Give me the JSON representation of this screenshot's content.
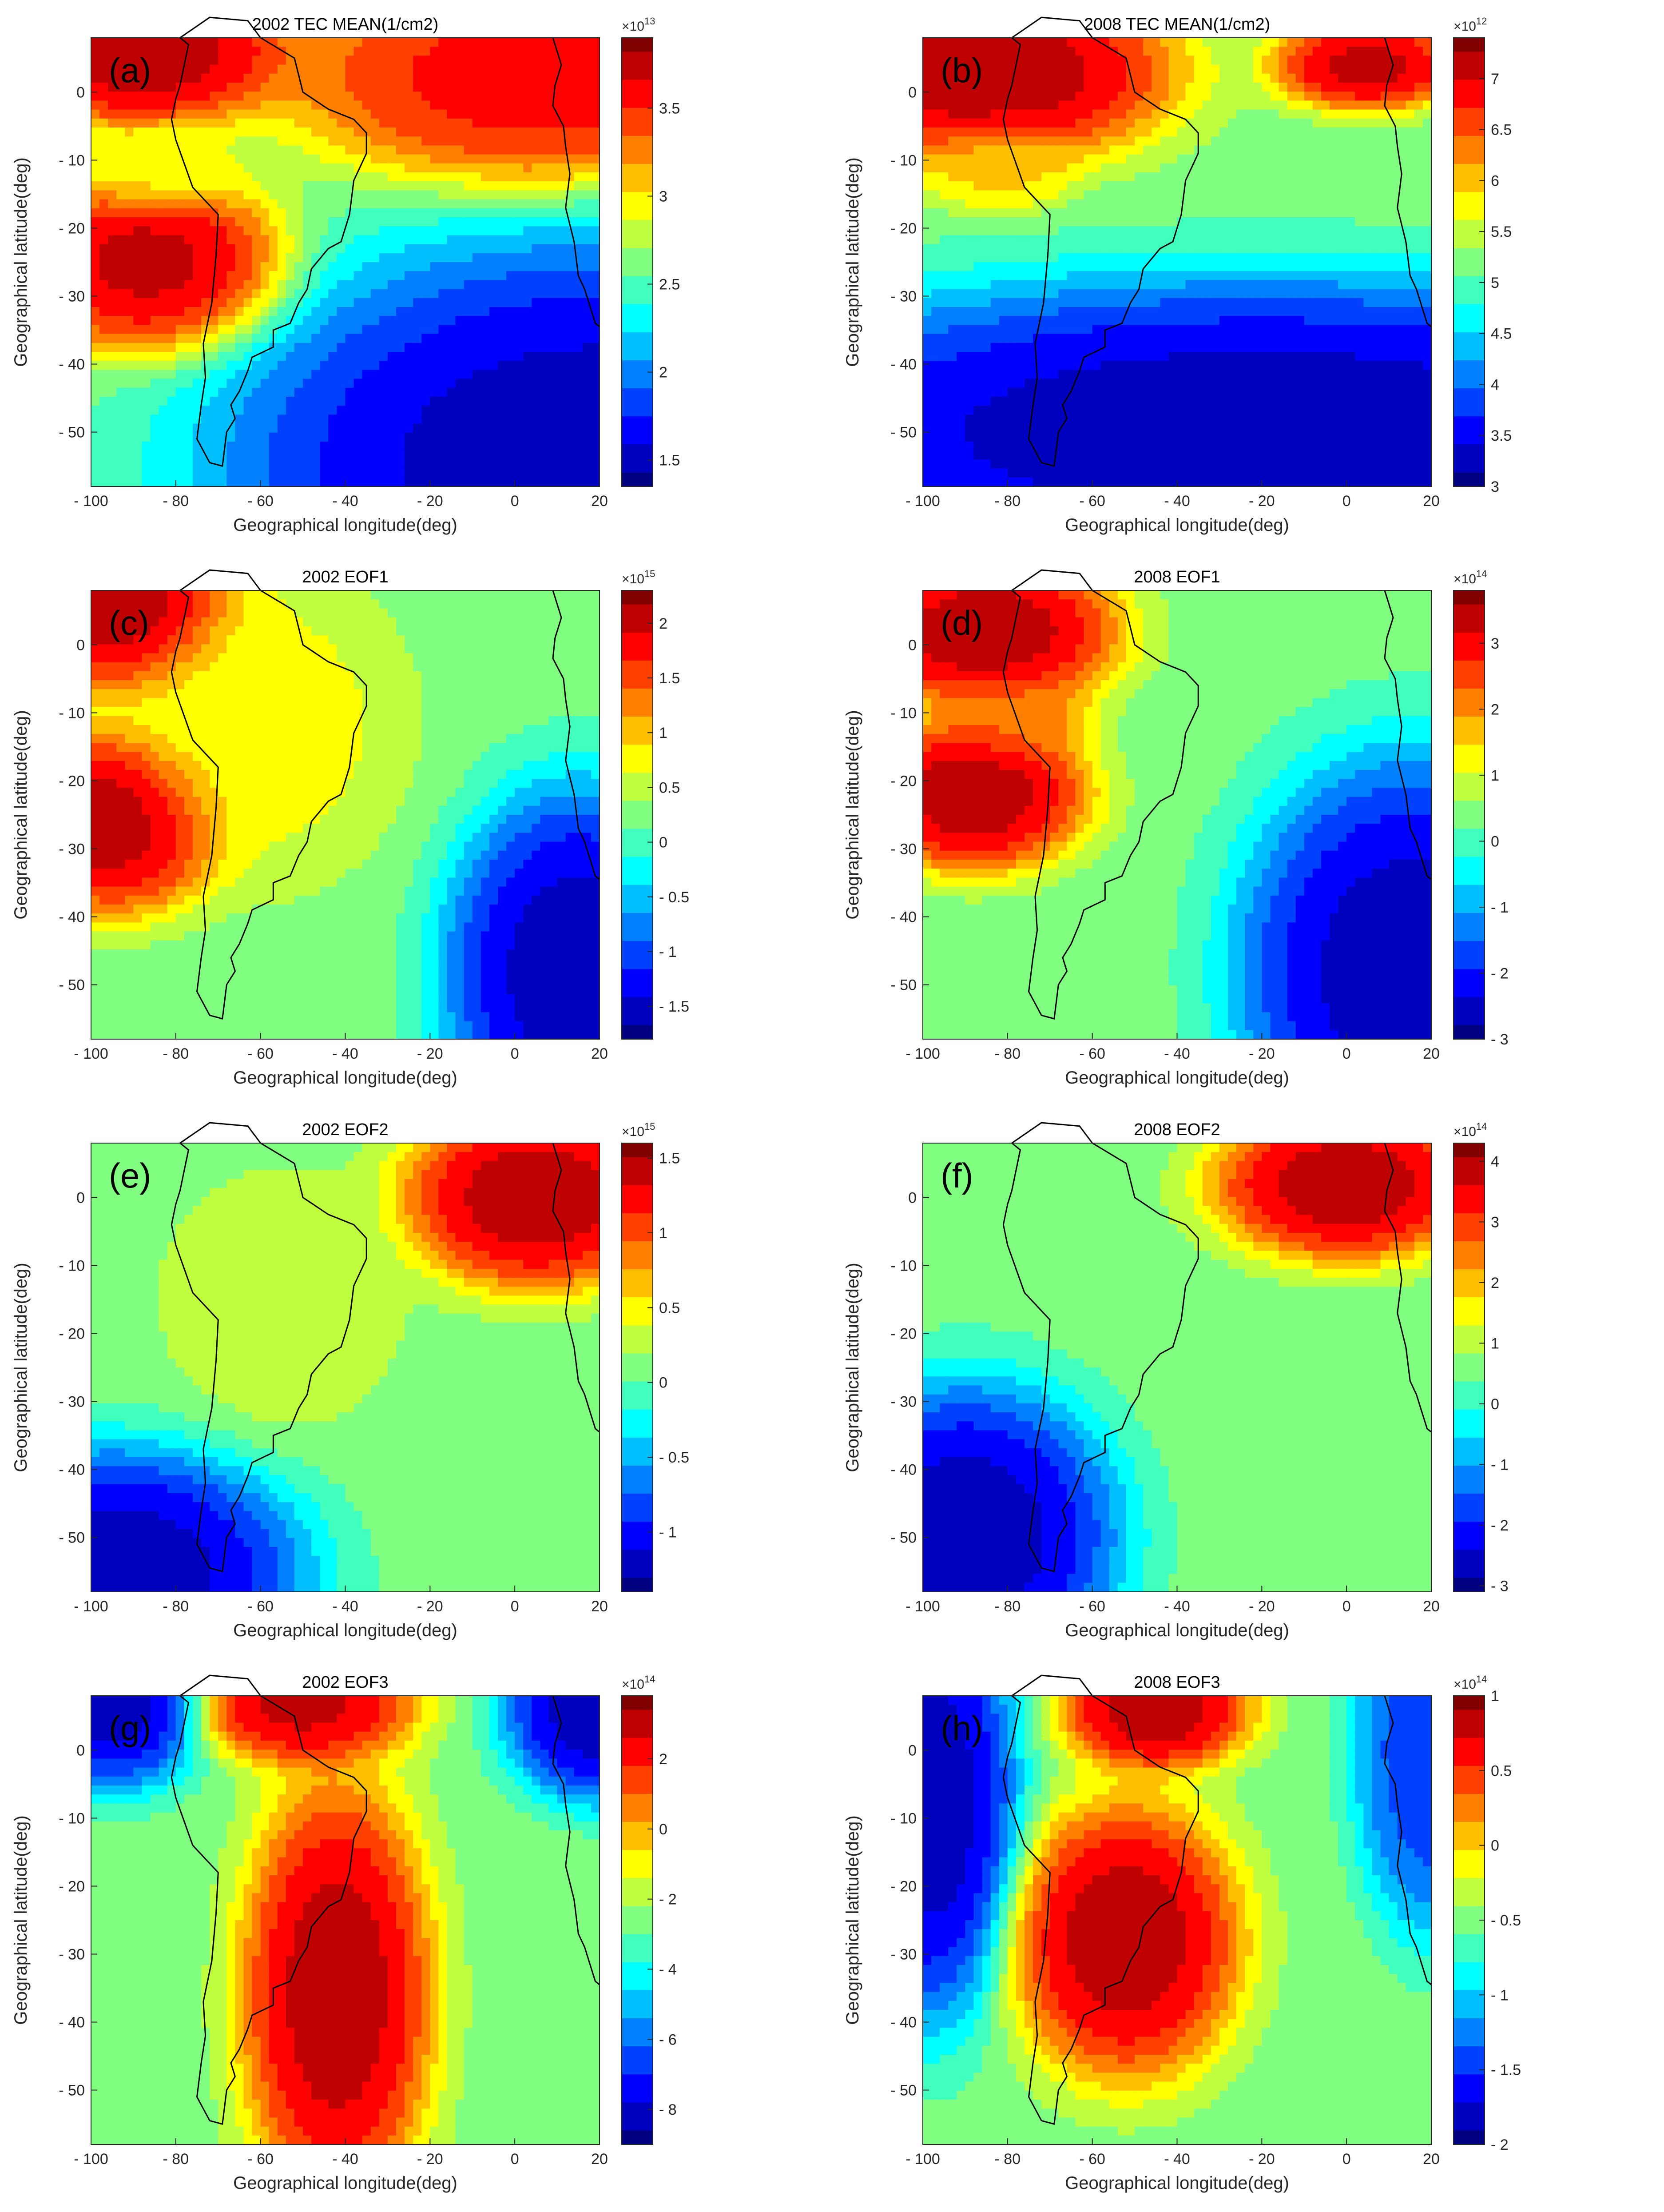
{
  "figure": {
    "columns": [
      "2002",
      "2008"
    ],
    "rows": [
      "TEC MEAN",
      "EOF1",
      "EOF2",
      "EOF3"
    ]
  },
  "chart_data": [
    {
      "type": "heatmap",
      "panel": "(a)",
      "title": "2002 TEC MEAN(1/cm2)",
      "xlabel": "Geographical longitude(deg)",
      "ylabel": "Geographical latitude(deg)",
      "xlim": [
        -100,
        20
      ],
      "ylim": [
        -58,
        8
      ],
      "xticks": [
        "- 100",
        "- 80",
        "- 60",
        "- 40",
        "- 20",
        "0",
        "20"
      ],
      "yticks": [
        "0",
        "- 10",
        "- 20",
        "- 30",
        "- 40",
        "- 50"
      ],
      "colorbar": {
        "multiplier": "×10",
        "exponent": "13",
        "min": 1.35,
        "max": 3.9,
        "ticks": [
          "1.5",
          "2",
          "2.5",
          "3",
          "3.5"
        ]
      },
      "centers": [
        {
          "lon": -88,
          "lat": 6,
          "value": 3.9,
          "spread_lon": 16,
          "spread_lat": 5
        },
        {
          "lon": -86,
          "lat": -25,
          "value": 3.85,
          "spread_lon": 14,
          "spread_lat": 6
        },
        {
          "lon": 5,
          "lat": 2,
          "value": 3.7,
          "spread_lon": 26,
          "spread_lat": 7
        },
        {
          "lon": -82,
          "lat": -12,
          "value": 2.9,
          "spread_lon": 10,
          "spread_lat": 3
        },
        {
          "lon": 20,
          "lat": -55,
          "value": 1.35,
          "spread_lon": 40,
          "spread_lat": 15
        }
      ]
    },
    {
      "type": "heatmap",
      "panel": "(b)",
      "title": "2008 TEC MEAN(1/cm2)",
      "xlabel": "Geographical longitude(deg)",
      "ylabel": "Geographical latitude(deg)",
      "xlim": [
        -100,
        20
      ],
      "ylim": [
        -58,
        8
      ],
      "xticks": [
        "- 100",
        "- 80",
        "- 60",
        "- 40",
        "- 20",
        "0",
        "20"
      ],
      "yticks": [
        "0",
        "- 10",
        "- 20",
        "- 30",
        "- 40",
        "- 50"
      ],
      "colorbar": {
        "multiplier": "×10",
        "exponent": "12",
        "min": 3.0,
        "max": 7.4,
        "ticks": [
          "3",
          "3.5",
          "4",
          "4.5",
          "5",
          "5.5",
          "6",
          "6.5",
          "7"
        ]
      },
      "centers": [
        {
          "lon": -85,
          "lat": 3,
          "value": 7.4,
          "spread_lon": 20,
          "spread_lat": 6
        },
        {
          "lon": 5,
          "lat": 4,
          "value": 7.3,
          "spread_lon": 10,
          "spread_lat": 3
        },
        {
          "lon": -82,
          "lat": -11,
          "value": 6.0,
          "spread_lon": 8,
          "spread_lat": 3
        },
        {
          "lon": -20,
          "lat": -50,
          "value": 3.0,
          "spread_lon": 60,
          "spread_lat": 10
        }
      ]
    },
    {
      "type": "heatmap",
      "panel": "(c)",
      "title": "2002 EOF1",
      "xlabel": "Geographical longitude(deg)",
      "ylabel": "Geographical latitude(deg)",
      "xlim": [
        -100,
        20
      ],
      "ylim": [
        -58,
        8
      ],
      "xticks": [
        "- 100",
        "- 80",
        "- 60",
        "- 40",
        "- 20",
        "0",
        "20"
      ],
      "yticks": [
        "0",
        "- 10",
        "- 20",
        "- 30",
        "- 40",
        "- 50"
      ],
      "colorbar": {
        "multiplier": "×10",
        "exponent": "15",
        "min": -1.8,
        "max": 2.3,
        "ticks": [
          "2",
          "1.5",
          "1",
          "0.5",
          "0",
          "- 0.5",
          "- 1",
          "- 1.5"
        ]
      },
      "centers": [
        {
          "lon": -92,
          "lat": 6,
          "value": 2.3,
          "spread_lon": 12,
          "spread_lat": 6
        },
        {
          "lon": -95,
          "lat": -26,
          "value": 2.3,
          "spread_lon": 12,
          "spread_lat": 6
        },
        {
          "lon": -60,
          "lat": -12,
          "value": 0.8,
          "spread_lon": 15,
          "spread_lat": 10
        },
        {
          "lon": 15,
          "lat": -48,
          "value": -1.8,
          "spread_lon": 14,
          "spread_lat": 12
        }
      ]
    },
    {
      "type": "heatmap",
      "panel": "(d)",
      "title": "2008 EOF1",
      "xlabel": "Geographical longitude(deg)",
      "ylabel": "Geographical latitude(deg)",
      "xlim": [
        -100,
        20
      ],
      "ylim": [
        -58,
        8
      ],
      "xticks": [
        "- 100",
        "- 80",
        "- 60",
        "- 40",
        "- 20",
        "0",
        "20"
      ],
      "yticks": [
        "0",
        "- 10",
        "- 20",
        "- 30",
        "- 40",
        "- 50"
      ],
      "colorbar": {
        "multiplier": "×10",
        "exponent": "14",
        "min": -3.0,
        "max": 3.8,
        "ticks": [
          "3",
          "2",
          "1",
          "0",
          "- 1",
          "- 2",
          "- 3"
        ]
      },
      "centers": [
        {
          "lon": -85,
          "lat": 2,
          "value": 3.8,
          "spread_lon": 14,
          "spread_lat": 5
        },
        {
          "lon": -88,
          "lat": -22,
          "value": 3.8,
          "spread_lon": 12,
          "spread_lat": 5
        },
        {
          "lon": -78,
          "lat": -11,
          "value": 2.3,
          "spread_lon": 8,
          "spread_lat": 3
        },
        {
          "lon": 15,
          "lat": -48,
          "value": -3.0,
          "spread_lon": 18,
          "spread_lat": 14
        }
      ]
    },
    {
      "type": "heatmap",
      "panel": "(e)",
      "title": "2002 EOF2",
      "xlabel": "Geographical longitude(deg)",
      "ylabel": "Geographical latitude(deg)",
      "xlim": [
        -100,
        20
      ],
      "ylim": [
        -58,
        8
      ],
      "xticks": [
        "- 100",
        "- 80",
        "- 60",
        "- 40",
        "- 20",
        "0",
        "20"
      ],
      "yticks": [
        "0",
        "- 10",
        "- 20",
        "- 30",
        "- 40",
        "- 50"
      ],
      "colorbar": {
        "multiplier": "×10",
        "exponent": "15",
        "min": -1.4,
        "max": 1.6,
        "ticks": [
          "1.5",
          "1",
          "0.5",
          "0",
          "- 0.5",
          "- 1"
        ]
      },
      "centers": [
        {
          "lon": 5,
          "lat": 0,
          "value": 1.6,
          "spread_lon": 14,
          "spread_lat": 6
        },
        {
          "lon": -55,
          "lat": -15,
          "value": 0.4,
          "spread_lon": 12,
          "spread_lat": 8
        },
        {
          "lon": -95,
          "lat": -55,
          "value": -1.4,
          "spread_lon": 20,
          "spread_lat": 8
        }
      ]
    },
    {
      "type": "heatmap",
      "panel": "(f)",
      "title": "2008 EOF2",
      "xlabel": "Geographical longitude(deg)",
      "ylabel": "Geographical latitude(deg)",
      "xlim": [
        -100,
        20
      ],
      "ylim": [
        -58,
        8
      ],
      "xticks": [
        "- 100",
        "- 80",
        "- 60",
        "- 40",
        "- 20",
        "0",
        "20"
      ],
      "yticks": [
        "0",
        "- 10",
        "- 20",
        "- 30",
        "- 40",
        "- 50"
      ],
      "colorbar": {
        "multiplier": "×10",
        "exponent": "14",
        "min": -3.1,
        "max": 4.3,
        "ticks": [
          "4",
          "3",
          "2",
          "1",
          "0",
          "- 1",
          "- 2",
          "- 3"
        ]
      },
      "centers": [
        {
          "lon": 0,
          "lat": 2,
          "value": 4.3,
          "spread_lon": 14,
          "spread_lat": 5
        },
        {
          "lon": -90,
          "lat": -50,
          "value": -3.1,
          "spread_lon": 16,
          "spread_lat": 10
        }
      ]
    },
    {
      "type": "heatmap",
      "panel": "(g)",
      "title": "2002 EOF3",
      "xlabel": "Geographical longitude(deg)",
      "ylabel": "Geographical latitude(deg)",
      "xlim": [
        -100,
        20
      ],
      "ylim": [
        -58,
        8
      ],
      "xticks": [
        "- 100",
        "- 80",
        "- 60",
        "- 40",
        "- 20",
        "0",
        "20"
      ],
      "yticks": [
        "0",
        "- 10",
        "- 20",
        "- 30",
        "- 40",
        "- 50"
      ],
      "colorbar": {
        "multiplier": "×10",
        "exponent": "14",
        "min": -9.0,
        "max": 3.8,
        "ticks": [
          "2",
          "0",
          "- 2",
          "- 4",
          "- 6",
          "- 8"
        ]
      },
      "centers": [
        {
          "lon": -42,
          "lat": -36,
          "value": 3.8,
          "spread_lon": 10,
          "spread_lat": 14
        },
        {
          "lon": -50,
          "lat": 7,
          "value": 3.5,
          "spread_lon": 12,
          "spread_lat": 4
        },
        {
          "lon": -95,
          "lat": 8,
          "value": -9.0,
          "spread_lon": 10,
          "spread_lat": 6
        },
        {
          "lon": 20,
          "lat": 6,
          "value": -9.0,
          "spread_lon": 10,
          "spread_lat": 6
        }
      ]
    },
    {
      "type": "heatmap",
      "panel": "(h)",
      "title": "2008 EOF3",
      "xlabel": "Geographical longitude(deg)",
      "ylabel": "Geographical latitude(deg)",
      "xlim": [
        -100,
        20
      ],
      "ylim": [
        -58,
        8
      ],
      "xticks": [
        "- 100",
        "- 80",
        "- 60",
        "- 40",
        "- 20",
        "0",
        "20"
      ],
      "yticks": [
        "0",
        "- 10",
        "- 20",
        "- 30",
        "- 40",
        "- 50"
      ],
      "colorbar": {
        "multiplier": "×10",
        "exponent": "14",
        "min": -2.0,
        "max": 1.0,
        "ticks": [
          "1",
          "0.5",
          "0",
          "- 0.5",
          "- 1",
          "- 1.5",
          "- 2"
        ]
      },
      "centers": [
        {
          "lon": -52,
          "lat": -28,
          "value": 1.0,
          "spread_lon": 12,
          "spread_lat": 9
        },
        {
          "lon": -45,
          "lat": 6,
          "value": 1.0,
          "spread_lon": 10,
          "spread_lat": 4
        },
        {
          "lon": -98,
          "lat": -8,
          "value": -2.0,
          "spread_lon": 9,
          "spread_lat": 14
        },
        {
          "lon": 20,
          "lat": 0,
          "value": -1.6,
          "spread_lon": 8,
          "spread_lat": 12
        }
      ]
    }
  ],
  "coastline_outline": [
    [
      -79,
      8
    ],
    [
      -72,
      11
    ],
    [
      -63,
      10.5
    ],
    [
      -60,
      8
    ],
    [
      -52,
      5
    ],
    [
      -50,
      0
    ],
    [
      -44,
      -2.5
    ],
    [
      -38,
      -4
    ],
    [
      -35,
      -6
    ],
    [
      -35,
      -9
    ],
    [
      -38,
      -13
    ],
    [
      -39,
      -18
    ],
    [
      -41,
      -22
    ],
    [
      -44,
      -23
    ],
    [
      -48,
      -26
    ],
    [
      -49,
      -29
    ],
    [
      -51,
      -31
    ],
    [
      -53,
      -34
    ],
    [
      -57,
      -35
    ],
    [
      -57,
      -37.5
    ],
    [
      -62,
      -39
    ],
    [
      -63,
      -41
    ],
    [
      -65,
      -44
    ],
    [
      -67,
      -46
    ],
    [
      -66,
      -48
    ],
    [
      -68,
      -50
    ],
    [
      -68.5,
      -52.5
    ],
    [
      -69,
      -55
    ],
    [
      -72,
      -54.5
    ],
    [
      -75,
      -51
    ],
    [
      -74,
      -46
    ],
    [
      -73,
      -42
    ],
    [
      -73.5,
      -37
    ],
    [
      -71.5,
      -31
    ],
    [
      -70.5,
      -24
    ],
    [
      -70,
      -18
    ],
    [
      -76,
      -14
    ],
    [
      -80,
      -7
    ],
    [
      -81,
      -4
    ],
    [
      -80,
      -1
    ],
    [
      -79,
      1
    ],
    [
      -78,
      4
    ],
    [
      -77,
      7
    ],
    [
      -79,
      8
    ]
  ],
  "africa_outline": [
    [
      9,
      8
    ],
    [
      11,
      4
    ],
    [
      9.5,
      1
    ],
    [
      9,
      -2
    ],
    [
      11.5,
      -5
    ],
    [
      12,
      -8
    ],
    [
      13,
      -12
    ],
    [
      12,
      -17
    ],
    [
      14,
      -22
    ],
    [
      15,
      -27
    ],
    [
      16.5,
      -29
    ],
    [
      18,
      -32
    ],
    [
      19,
      -34
    ],
    [
      20,
      -34.5
    ]
  ]
}
